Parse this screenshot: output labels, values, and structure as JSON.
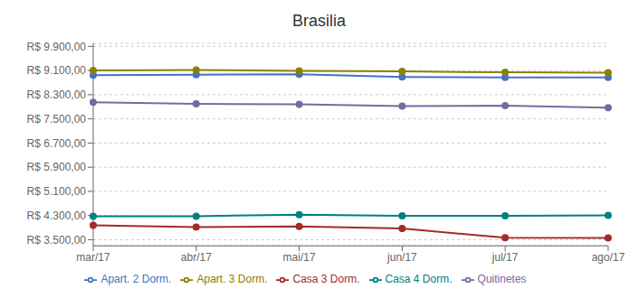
{
  "chart_data": {
    "type": "line",
    "title": "Brasilia",
    "categories": [
      "mar/17",
      "abr/17",
      "mai/17",
      "jun/17",
      "jul/17",
      "ago/17"
    ],
    "series": [
      {
        "name": "Apart. 2 Dorm.",
        "color": "#4472c4",
        "values": [
          8950,
          8960,
          8980,
          8890,
          8870,
          8870
        ]
      },
      {
        "name": "Apart. 3 Dorm.",
        "color": "#8b8000",
        "values": [
          9100,
          9120,
          9090,
          9070,
          9040,
          9030
        ]
      },
      {
        "name": "Casa 3 Dorm.",
        "color": "#a52a2a",
        "values": [
          3980,
          3920,
          3940,
          3870,
          3570,
          3560
        ]
      },
      {
        "name": "Casa 4 Dorm.",
        "color": "#008080",
        "values": [
          4280,
          4280,
          4330,
          4290,
          4290,
          4310
        ]
      },
      {
        "name": "Quitinetes",
        "color": "#7b68a0",
        "values": [
          8050,
          8000,
          7980,
          7920,
          7940,
          7870
        ]
      }
    ],
    "ylim": [
      3300,
      10000
    ],
    "yticks": [
      {
        "value": 3500,
        "label": "R$ 3.500,00"
      },
      {
        "value": 4300,
        "label": "R$ 4.300,00"
      },
      {
        "value": 5100,
        "label": "R$ 5.100,00"
      },
      {
        "value": 5900,
        "label": "R$ 5.900,00"
      },
      {
        "value": 6700,
        "label": "R$ 6.700,00"
      },
      {
        "value": 7500,
        "label": "R$ 7.500,00"
      },
      {
        "value": 8300,
        "label": "R$ 8.300,00"
      },
      {
        "value": 9100,
        "label": "R$ 9.100,00"
      },
      {
        "value": 9900,
        "label": "R$ 9.900,00"
      }
    ],
    "grid": true,
    "legend": "bottom",
    "marker": "circle"
  }
}
